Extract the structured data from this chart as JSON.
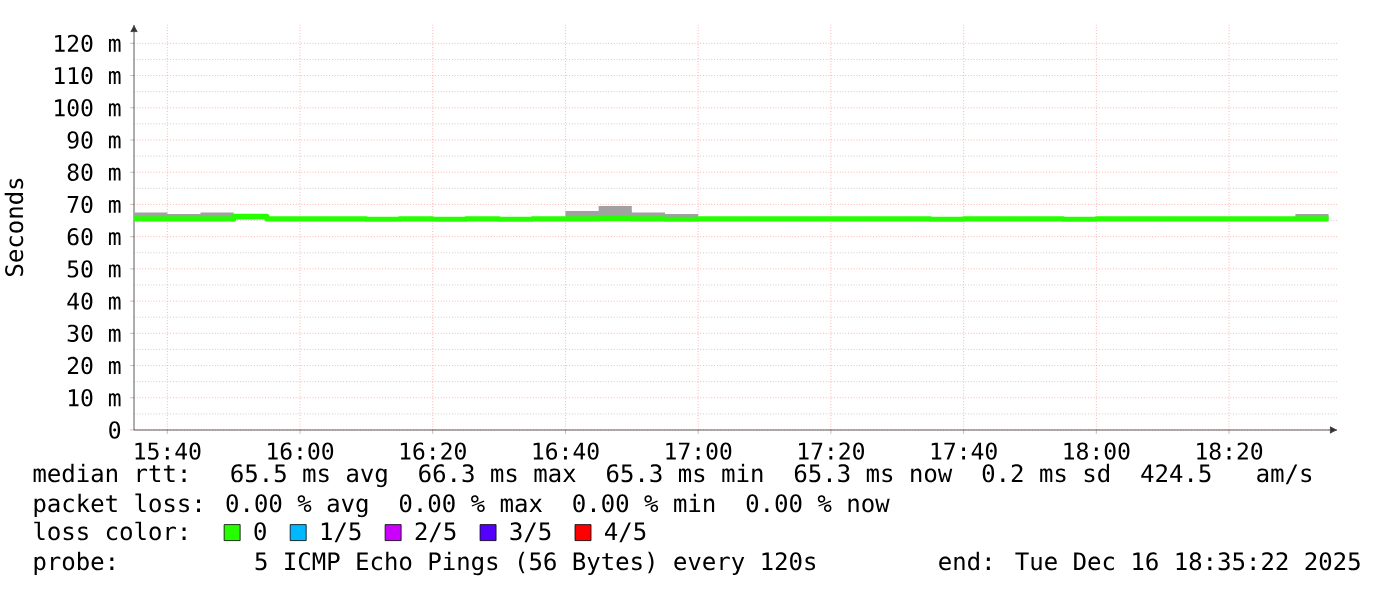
{
  "chart_data": {
    "type": "step",
    "ylabel": "Seconds",
    "x": [
      15.5833,
      15.6667,
      15.75,
      15.8333,
      15.9167,
      16,
      16.0833,
      16.1667,
      16.25,
      16.3333,
      16.4167,
      16.5,
      16.5833,
      16.6667,
      16.75,
      16.8333,
      16.9167,
      17,
      17.0833,
      17.1667,
      17.25,
      17.3333,
      17.4167,
      17.5,
      17.5833,
      17.6667,
      17.75,
      17.8333,
      17.9167,
      18,
      18.0833,
      18.1667,
      18.25,
      18.3333,
      18.4167,
      18.5,
      18.5833
    ],
    "series": [
      {
        "name": "0",
        "color": "#26ff00",
        "values": [
          65.5,
          65.5,
          65.5,
          66.3,
          65.5,
          65.5,
          65.5,
          65.4,
          65.5,
          65.4,
          65.5,
          65.4,
          65.5,
          65.5,
          65.6,
          65.5,
          65.4,
          65.5,
          65.5,
          65.5,
          65.5,
          65.5,
          65.5,
          65.5,
          65.4,
          65.5,
          65.5,
          65.5,
          65.4,
          65.5,
          65.5,
          65.5,
          65.5,
          65.5,
          65.5,
          65.5,
          65.5
        ],
        "lower": [
          65.3,
          65.3,
          65.3,
          65.3,
          65.3,
          65.3,
          65.3,
          65.3,
          65.3,
          65.3,
          65.3,
          65.3,
          65.3,
          65.3,
          65.3,
          65.3,
          65.3,
          65.3,
          65.3,
          65.3,
          65.3,
          65.3,
          65.3,
          65.3,
          65.3,
          65.3,
          65.3,
          65.3,
          65.3,
          65.3,
          65.3,
          65.3,
          65.3,
          65.3,
          65.3,
          65.3,
          65.3
        ],
        "upper": [
          67.5,
          67,
          67.5,
          66.3,
          65.8,
          65.8,
          65.8,
          65.8,
          65.8,
          65.8,
          65.8,
          65.8,
          65.8,
          68,
          69.5,
          67.5,
          67,
          65.8,
          65.8,
          65.8,
          65.8,
          65.8,
          65.8,
          65.8,
          65.8,
          65.8,
          65.8,
          65.8,
          65.8,
          65.8,
          65.8,
          65.8,
          65.8,
          65.8,
          65.8,
          67,
          67
        ]
      },
      {
        "name": "1/5",
        "color": "#00b8ff",
        "values": [
          null,
          null,
          null,
          null,
          null,
          null,
          null,
          null,
          null,
          null,
          null,
          null,
          null,
          null,
          null,
          null,
          null,
          null,
          null,
          null,
          null,
          null,
          null,
          null,
          null,
          null,
          null,
          null,
          null,
          null,
          null,
          null,
          null,
          null,
          null,
          null,
          null
        ]
      },
      {
        "name": "2/5",
        "color": "#cc00ff",
        "values": [
          null,
          null,
          null,
          null,
          null,
          null,
          null,
          null,
          null,
          null,
          null,
          null,
          null,
          null,
          null,
          null,
          null,
          null,
          null,
          null,
          null,
          null,
          null,
          null,
          null,
          null,
          null,
          null,
          null,
          null,
          null,
          null,
          null,
          null,
          null,
          null,
          null
        ]
      },
      {
        "name": "3/5",
        "color": "#5500ff",
        "values": [
          null,
          null,
          null,
          null,
          null,
          null,
          null,
          null,
          null,
          null,
          null,
          null,
          null,
          null,
          null,
          null,
          null,
          null,
          null,
          null,
          null,
          null,
          null,
          null,
          null,
          null,
          null,
          null,
          null,
          null,
          null,
          null,
          null,
          null,
          null,
          null,
          null
        ]
      },
      {
        "name": "4/5",
        "color": "#ff0000",
        "values": [
          null,
          null,
          null,
          null,
          null,
          null,
          null,
          null,
          null,
          null,
          null,
          null,
          null,
          null,
          null,
          null,
          null,
          null,
          null,
          null,
          null,
          null,
          null,
          null,
          null,
          null,
          null,
          null,
          null,
          null,
          null,
          null,
          null,
          null,
          null,
          null,
          null
        ]
      }
    ],
    "legend_title": "loss color:",
    "legend": "bottom",
    "xlim": [
      15.583,
      18.607
    ],
    "ylim": [
      0,
      126
    ],
    "xticks": [
      {
        "value": 15.6667,
        "label": "15:40"
      },
      {
        "value": 16,
        "label": "16:00"
      },
      {
        "value": 16.3333,
        "label": "16:20"
      },
      {
        "value": 16.6667,
        "label": "16:40"
      },
      {
        "value": 17,
        "label": "17:00"
      },
      {
        "value": 17.3333,
        "label": "17:20"
      },
      {
        "value": 17.6667,
        "label": "17:40"
      },
      {
        "value": 18,
        "label": "18:00"
      },
      {
        "value": 18.3333,
        "label": "18:20"
      }
    ],
    "yticks": [
      0,
      {
        "value": 10,
        "label": "10 m"
      },
      {
        "value": 20,
        "label": "20 m"
      },
      {
        "value": 30,
        "label": "30 m"
      },
      {
        "value": 40,
        "label": "40 m"
      },
      {
        "value": 50,
        "label": "50 m"
      },
      {
        "value": 60,
        "label": "60 m"
      },
      {
        "value": 70,
        "label": "70 m"
      },
      {
        "value": 80,
        "label": "80 m"
      },
      {
        "value": 90,
        "label": "90 m"
      },
      {
        "value": 100,
        "label": "100 m"
      },
      {
        "value": 110,
        "label": "110 m"
      },
      {
        "value": 120,
        "label": "120 m"
      }
    ],
    "grid": true,
    "annotations": [
      "median rtt:  65.5 ms avg  66.3 ms max  65.3 ms min  65.3 ms now  0.2 ms sd  424.5   am/s",
      "packet loss: 0.00 % avg  0.00 % max  0.00 % min  0.00 % now",
      "probe:       5 ICMP Echo Pings (56 Bytes) every 120s",
      "end: Tue Dec 16 18:35:22 2025"
    ]
  }
}
